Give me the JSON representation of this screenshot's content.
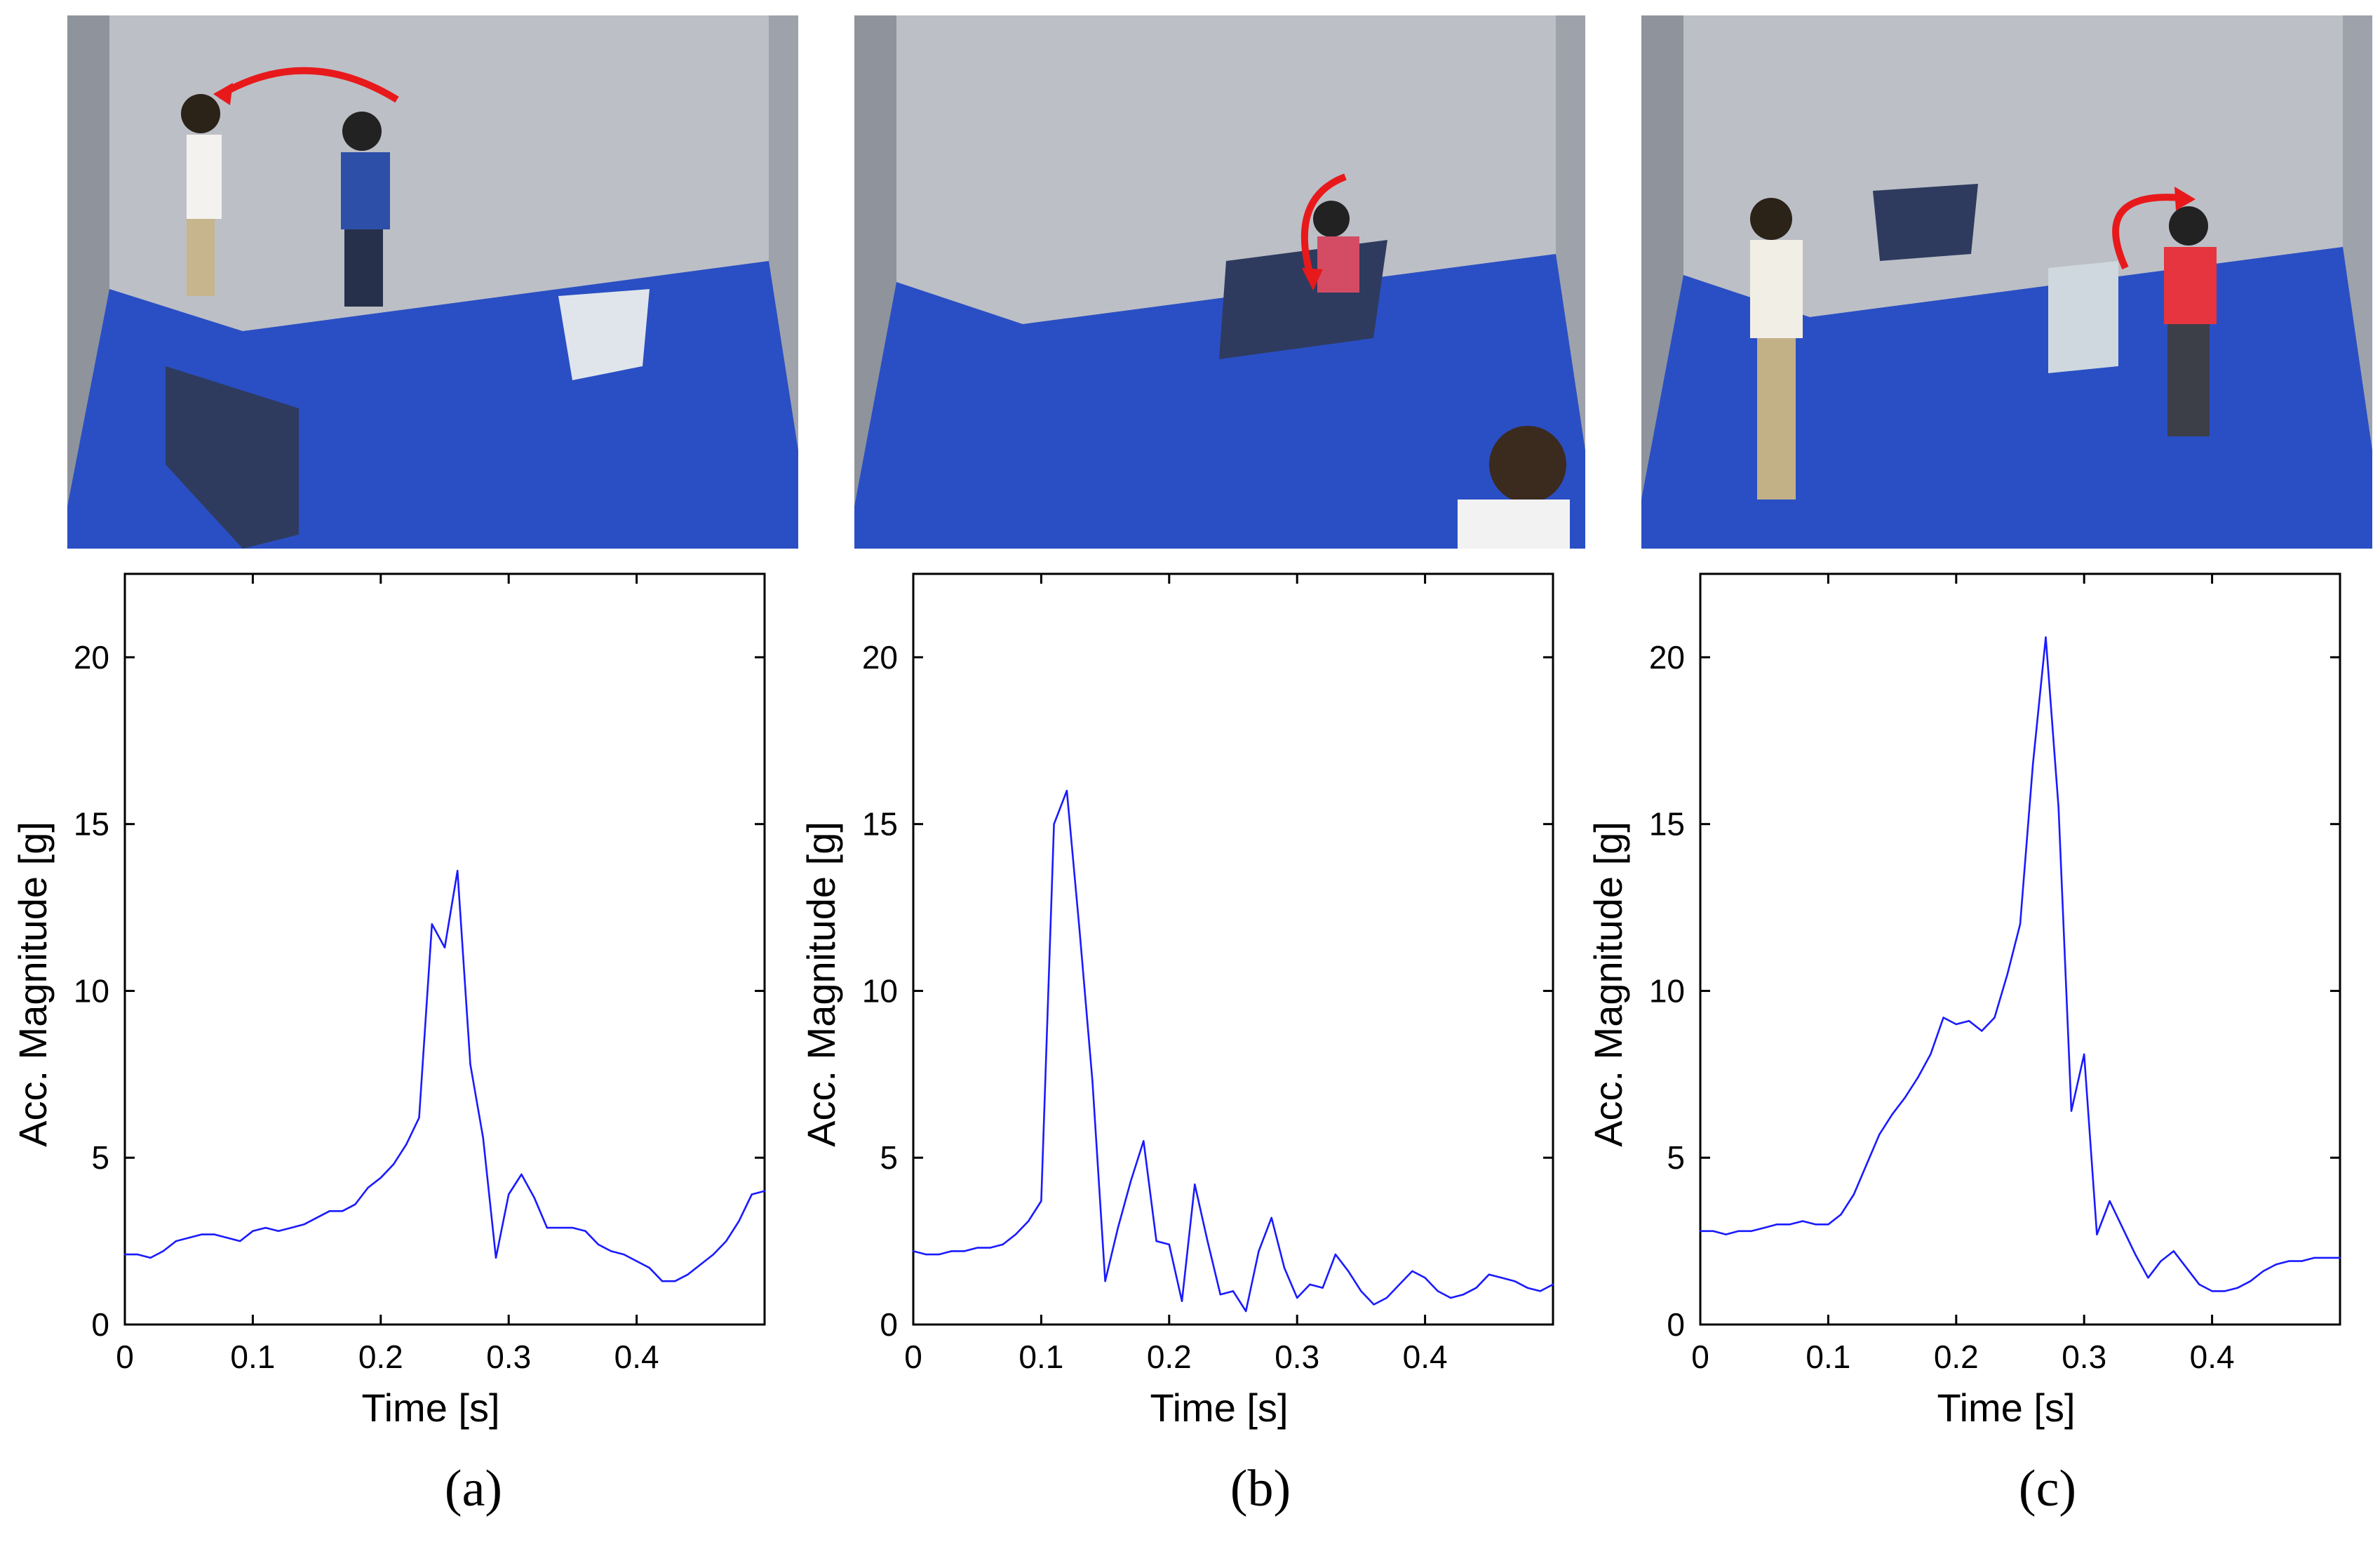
{
  "colors": {
    "line": "#1a1aff",
    "arrow": "#e8191b",
    "floor": "#2a4fc4",
    "wall": "#b9bcc4"
  },
  "photos": [
    {
      "id": "a",
      "description_icon": "fall-camera-frame"
    },
    {
      "id": "b",
      "description_icon": "fall-camera-frame"
    },
    {
      "id": "c",
      "description_icon": "fall-camera-frame"
    }
  ],
  "captions": {
    "a": "(a)",
    "b": "(b)",
    "c": "(c)"
  },
  "chart_data": [
    {
      "type": "line",
      "xlabel": "Time [s]",
      "ylabel": "Acc. Magnitude [g]",
      "xlim": [
        0,
        0.5
      ],
      "ylim": [
        0,
        22.5
      ],
      "xticks": [
        0,
        0.1,
        0.2,
        0.3,
        0.4
      ],
      "xtick_labels": [
        "0",
        "0.1",
        "0.2",
        "0.3",
        "0.4"
      ],
      "yticks": [
        0,
        5,
        10,
        15,
        20
      ],
      "ytick_labels": [
        "0",
        "5",
        "10",
        "15",
        "20"
      ],
      "x": [
        0,
        0.01,
        0.02,
        0.03,
        0.04,
        0.05,
        0.06,
        0.07,
        0.08,
        0.09,
        0.1,
        0.11,
        0.12,
        0.13,
        0.14,
        0.15,
        0.16,
        0.17,
        0.18,
        0.19,
        0.2,
        0.21,
        0.22,
        0.23,
        0.24,
        0.25,
        0.26,
        0.27,
        0.28,
        0.29,
        0.3,
        0.31,
        0.32,
        0.33,
        0.34,
        0.35,
        0.36,
        0.37,
        0.38,
        0.39,
        0.4,
        0.41,
        0.42,
        0.43,
        0.44,
        0.45,
        0.46,
        0.47,
        0.48,
        0.49,
        0.5
      ],
      "y": [
        2.1,
        2.1,
        2.0,
        2.2,
        2.5,
        2.6,
        2.7,
        2.7,
        2.6,
        2.5,
        2.8,
        2.9,
        2.8,
        2.9,
        3.0,
        3.2,
        3.4,
        3.4,
        3.6,
        4.1,
        4.4,
        4.8,
        5.4,
        6.2,
        12.0,
        11.3,
        13.6,
        7.8,
        5.6,
        2.0,
        3.9,
        4.5,
        3.8,
        2.9,
        2.9,
        2.9,
        2.8,
        2.4,
        2.2,
        2.1,
        1.9,
        1.7,
        1.3,
        1.3,
        1.5,
        1.8,
        2.1,
        2.5,
        3.1,
        3.9,
        4.0
      ]
    },
    {
      "type": "line",
      "xlabel": "Time [s]",
      "ylabel": "Acc. Magnitude [g]",
      "xlim": [
        0,
        0.5
      ],
      "ylim": [
        0,
        22.5
      ],
      "xticks": [
        0,
        0.1,
        0.2,
        0.3,
        0.4
      ],
      "xtick_labels": [
        "0",
        "0.1",
        "0.2",
        "0.3",
        "0.4"
      ],
      "yticks": [
        0,
        5,
        10,
        15,
        20
      ],
      "ytick_labels": [
        "0",
        "5",
        "10",
        "15",
        "20"
      ],
      "x": [
        0,
        0.01,
        0.02,
        0.03,
        0.04,
        0.05,
        0.06,
        0.07,
        0.08,
        0.09,
        0.1,
        0.11,
        0.12,
        0.13,
        0.14,
        0.15,
        0.16,
        0.17,
        0.18,
        0.19,
        0.2,
        0.21,
        0.22,
        0.23,
        0.24,
        0.25,
        0.26,
        0.27,
        0.28,
        0.29,
        0.3,
        0.31,
        0.32,
        0.33,
        0.34,
        0.35,
        0.36,
        0.37,
        0.38,
        0.39,
        0.4,
        0.41,
        0.42,
        0.43,
        0.44,
        0.45,
        0.46,
        0.47,
        0.48,
        0.49,
        0.5
      ],
      "y": [
        2.2,
        2.1,
        2.1,
        2.2,
        2.2,
        2.3,
        2.3,
        2.4,
        2.7,
        3.1,
        3.7,
        15.0,
        16.0,
        11.8,
        7.3,
        1.3,
        2.9,
        4.3,
        5.5,
        2.5,
        2.4,
        0.7,
        4.2,
        2.5,
        0.9,
        1.0,
        0.4,
        2.2,
        3.2,
        1.7,
        0.8,
        1.2,
        1.1,
        2.1,
        1.6,
        1.0,
        0.6,
        0.8,
        1.2,
        1.6,
        1.4,
        1.0,
        0.8,
        0.9,
        1.1,
        1.5,
        1.4,
        1.3,
        1.1,
        1.0,
        1.2
      ]
    },
    {
      "type": "line",
      "xlabel": "Time [s]",
      "ylabel": "Acc. Magnitude [g]",
      "xlim": [
        0,
        0.5
      ],
      "ylim": [
        0,
        22.5
      ],
      "xticks": [
        0,
        0.1,
        0.2,
        0.3,
        0.4
      ],
      "xtick_labels": [
        "0",
        "0.1",
        "0.2",
        "0.3",
        "0.4"
      ],
      "yticks": [
        0,
        5,
        10,
        15,
        20
      ],
      "ytick_labels": [
        "0",
        "5",
        "10",
        "15",
        "20"
      ],
      "x": [
        0,
        0.01,
        0.02,
        0.03,
        0.04,
        0.05,
        0.06,
        0.07,
        0.08,
        0.09,
        0.1,
        0.11,
        0.12,
        0.13,
        0.14,
        0.15,
        0.16,
        0.17,
        0.18,
        0.19,
        0.2,
        0.21,
        0.22,
        0.23,
        0.24,
        0.25,
        0.26,
        0.27,
        0.28,
        0.29,
        0.3,
        0.31,
        0.32,
        0.33,
        0.34,
        0.35,
        0.36,
        0.37,
        0.38,
        0.39,
        0.4,
        0.41,
        0.42,
        0.43,
        0.44,
        0.45,
        0.46,
        0.47,
        0.48,
        0.49,
        0.5
      ],
      "y": [
        2.8,
        2.8,
        2.7,
        2.8,
        2.8,
        2.9,
        3.0,
        3.0,
        3.1,
        3.0,
        3.0,
        3.3,
        3.9,
        4.8,
        5.7,
        6.3,
        6.8,
        7.4,
        8.1,
        9.2,
        9.0,
        9.1,
        8.8,
        9.2,
        10.5,
        12.0,
        16.8,
        20.6,
        15.5,
        6.4,
        8.1,
        2.7,
        3.7,
        2.9,
        2.1,
        1.4,
        1.9,
        2.2,
        1.7,
        1.2,
        1.0,
        1.0,
        1.1,
        1.3,
        1.6,
        1.8,
        1.9,
        1.9,
        2.0,
        2.0,
        2.0
      ]
    }
  ]
}
